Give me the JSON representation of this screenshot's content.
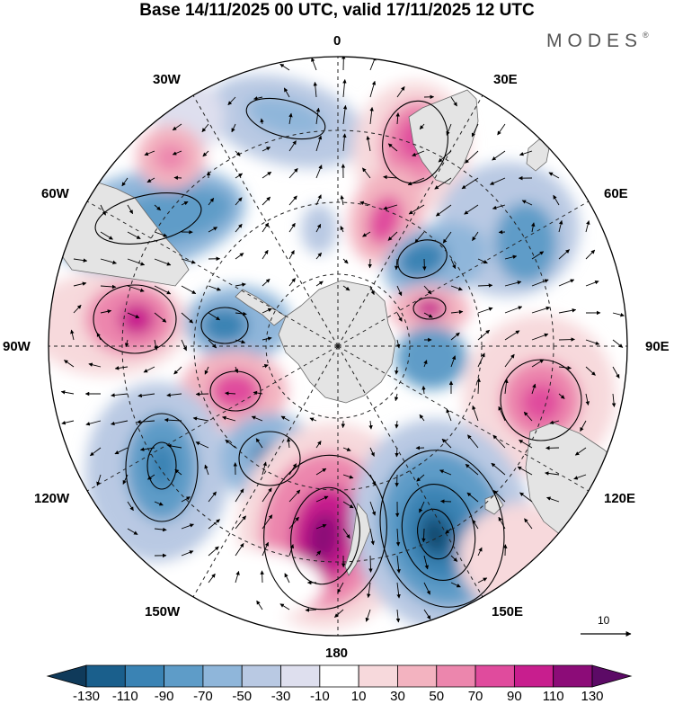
{
  "title": "Base 14/11/2025 00 UTC, valid 17/11/2025 12 UTC",
  "brand": {
    "name": "MODES",
    "mark": "®"
  },
  "longitude_labels": {
    "lon_0": "0",
    "lon_30e": "30E",
    "lon_60e": "60E",
    "lon_90e": "90E",
    "lon_120e": "120E",
    "lon_150e": "150E",
    "lon_180": "180",
    "lon_150w": "150W",
    "lon_120w": "120W",
    "lon_90w": "90W",
    "lon_60w": "60W",
    "lon_30w": "30W"
  },
  "vector_reference": {
    "value": "10"
  },
  "colors": {
    "land": "#e4e4e4",
    "coast": "#6a6a6a",
    "grid": "#222222"
  },
  "colorbar": {
    "boundaries": [
      "-130",
      "-110",
      "-90",
      "-70",
      "-50",
      "-30",
      "-10",
      "10",
      "30",
      "50",
      "70",
      "90",
      "110",
      "130"
    ],
    "colors": [
      "#0f3a5a",
      "#1a5f8c",
      "#3a83b4",
      "#5e9cc8",
      "#8fb6da",
      "#b9c9e3",
      "#dedfee",
      "#ffffff",
      "#f7d9dc",
      "#f3b3c0",
      "#ec86ad",
      "#e04b9d",
      "#c81e8e",
      "#8c0c78",
      "#5c0a66"
    ]
  },
  "anomaly_centers": [
    {
      "name": "60s-150e",
      "value": -130
    },
    {
      "name": "58s-170w",
      "value": 115
    },
    {
      "name": "55s-110e",
      "value": 75
    },
    {
      "name": "50s-90w",
      "value": 72
    },
    {
      "name": "50s-115w",
      "value": -85
    }
  ]
}
